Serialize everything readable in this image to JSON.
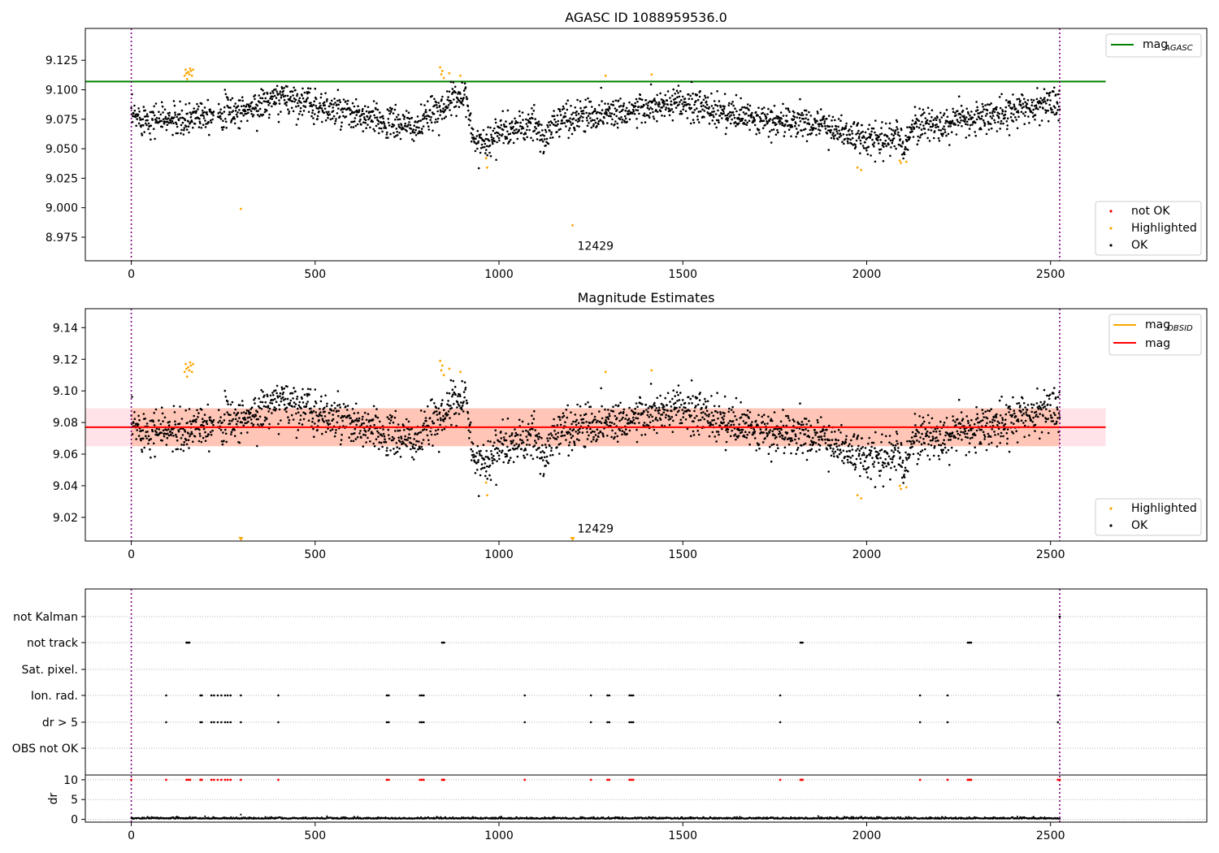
{
  "chart_data": [
    {
      "type": "scatter",
      "title": "AGASC ID 1088959536.0",
      "xlabel": "",
      "ylabel": "",
      "xlim": [
        -125,
        2925
      ],
      "ylim": [
        8.955,
        9.152
      ],
      "xticks": [
        0,
        500,
        1000,
        1500,
        2000,
        2500
      ],
      "yticks": [
        8.975,
        9.0,
        9.025,
        9.05,
        9.075,
        9.1,
        9.125
      ],
      "xtick_labels": [
        "0",
        "500",
        "1000",
        "1500",
        "2000",
        "2500"
      ],
      "ytick_labels": [
        "8.975",
        "9.000",
        "9.025",
        "9.050",
        "9.075",
        "9.100",
        "9.125"
      ],
      "vlines": [
        0,
        2525
      ],
      "hline": {
        "name": "mag_AGASC",
        "y": 9.107,
        "x_range": [
          -125,
          2650
        ],
        "color": "#008000"
      },
      "annotation": {
        "text": "12429",
        "x": 1200,
        "y": 8.963
      },
      "legends": [
        {
          "position": "top-right",
          "entries": [
            {
              "label": "mag",
              "subscript": "AGASC",
              "kind": "line",
              "color": "#008000"
            }
          ]
        },
        {
          "position": "bottom-right",
          "entries": [
            {
              "label": "not OK",
              "kind": "dot",
              "color": "#ff0000"
            },
            {
              "label": "Highlighted",
              "kind": "dot",
              "color": "#ffa500"
            },
            {
              "label": "OK",
              "kind": "dot",
              "color": "#000000"
            }
          ]
        }
      ],
      "series": [
        {
          "name": "OK",
          "color": "#000000",
          "generator": "mag-trend",
          "trend": [
            [
              0,
              9.077
            ],
            [
              130,
              9.074
            ],
            [
              140,
              9.07
            ],
            [
              175,
              9.08
            ],
            [
              300,
              9.082
            ],
            [
              420,
              9.094
            ],
            [
              520,
              9.085
            ],
            [
              600,
              9.078
            ],
            [
              700,
              9.072
            ],
            [
              780,
              9.068
            ],
            [
              830,
              9.083
            ],
            [
              880,
              9.092
            ],
            [
              910,
              9.099
            ],
            [
              925,
              9.06
            ],
            [
              960,
              9.055
            ],
            [
              1000,
              9.064
            ],
            [
              1100,
              9.07
            ],
            [
              1125,
              9.055
            ],
            [
              1150,
              9.074
            ],
            [
              1250,
              9.079
            ],
            [
              1400,
              9.084
            ],
            [
              1500,
              9.088
            ],
            [
              1600,
              9.082
            ],
            [
              1700,
              9.074
            ],
            [
              1850,
              9.072
            ],
            [
              1900,
              9.068
            ],
            [
              2000,
              9.057
            ],
            [
              2080,
              9.061
            ],
            [
              2100,
              9.052
            ],
            [
              2130,
              9.072
            ],
            [
              2200,
              9.07
            ],
            [
              2300,
              9.076
            ],
            [
              2400,
              9.082
            ],
            [
              2525,
              9.09
            ]
          ],
          "noise": 0.008,
          "n": 2400
        },
        {
          "name": "Highlighted",
          "color": "#ffa500",
          "points": [
            [
              145,
              9.112
            ],
            [
              148,
              9.117
            ],
            [
              150,
              9.114
            ],
            [
              152,
              9.109
            ],
            [
              155,
              9.115
            ],
            [
              158,
              9.113
            ],
            [
              160,
              9.118
            ],
            [
              162,
              9.116
            ],
            [
              165,
              9.112
            ],
            [
              168,
              9.117
            ],
            [
              298,
              8.999
            ],
            [
              840,
              9.119
            ],
            [
              843,
              9.113
            ],
            [
              846,
              9.116
            ],
            [
              850,
              9.11
            ],
            [
              865,
              9.114
            ],
            [
              895,
              9.112
            ],
            [
              965,
              9.042
            ],
            [
              968,
              9.034
            ],
            [
              1200,
              8.985
            ],
            [
              1290,
              9.112
            ],
            [
              1415,
              9.113
            ],
            [
              1975,
              9.034
            ],
            [
              1985,
              9.032
            ],
            [
              2090,
              9.04
            ],
            [
              2093,
              9.038
            ],
            [
              2108,
              9.039
            ]
          ]
        }
      ]
    },
    {
      "type": "scatter",
      "title": "Magnitude Estimates",
      "xlabel": "",
      "ylabel": "",
      "xlim": [
        -125,
        2925
      ],
      "ylim": [
        9.005,
        9.152
      ],
      "xticks": [
        0,
        500,
        1000,
        1500,
        2000,
        2500
      ],
      "yticks": [
        9.02,
        9.04,
        9.06,
        9.08,
        9.1,
        9.12,
        9.14
      ],
      "xtick_labels": [
        "0",
        "500",
        "1000",
        "1500",
        "2000",
        "2500"
      ],
      "ytick_labels": [
        "9.02",
        "9.04",
        "9.06",
        "9.08",
        "9.10",
        "9.12",
        "9.14"
      ],
      "vlines": [
        0,
        2525
      ],
      "mag_line": {
        "name": "mag",
        "y": 9.077,
        "x_range": [
          -125,
          2650
        ],
        "color": "#ff0000"
      },
      "band": {
        "y_low": 9.065,
        "y_high": 9.089,
        "outer_x_range": [
          -125,
          2650
        ],
        "inner_x_range": [
          0,
          2525
        ],
        "outer_color": "#ffc0cb",
        "inner_color": "#ffa07a"
      },
      "annotation": {
        "text": "12429",
        "x": 1200,
        "y": 9.0094
      },
      "legends": [
        {
          "position": "top-right",
          "entries": [
            {
              "label": "mag",
              "subscript": "OBSID",
              "kind": "line",
              "color": "#ffa500"
            },
            {
              "label": "mag",
              "kind": "line",
              "color": "#ff0000"
            }
          ]
        },
        {
          "position": "bottom-right",
          "entries": [
            {
              "label": "Highlighted",
              "kind": "dot",
              "color": "#ffa500"
            },
            {
              "label": "OK",
              "kind": "dot",
              "color": "#000000"
            }
          ]
        }
      ],
      "offscale_markers": [
        {
          "x": 298,
          "y": 9.006
        },
        {
          "x": 1200,
          "y": 9.006
        }
      ]
    },
    {
      "type": "scatter",
      "title": "",
      "xlim": [
        -125,
        2925
      ],
      "xticks": [
        0,
        500,
        1000,
        1500,
        2000,
        2500
      ],
      "xtick_labels": [
        "0",
        "500",
        "1000",
        "1500",
        "2000",
        "2500"
      ],
      "vlines": [
        0,
        2525
      ],
      "flag_rows": [
        "not Kalman",
        "not track",
        "Sat. pixel.",
        "Ion. rad.",
        "dr > 5",
        "OBS not OK"
      ],
      "flag_points": {
        "not Kalman": [
          2525
        ],
        "not track": [
          150,
          152,
          155,
          158,
          845,
          848,
          851,
          1820,
          1823,
          1826,
          2275,
          2278,
          2281,
          2284
        ],
        "Sat. pixel.": [],
        "Ion. rad.": [
          95,
          188,
          192,
          218,
          225,
          235,
          245,
          255,
          262,
          270,
          298,
          400,
          695,
          700,
          785,
          790,
          795,
          1070,
          1250,
          1295,
          1300,
          1355,
          1360,
          1365,
          1765,
          2145,
          2220,
          2520
        ],
        "dr > 5": [
          95,
          188,
          192,
          218,
          225,
          235,
          245,
          255,
          262,
          270,
          298,
          400,
          695,
          700,
          785,
          790,
          795,
          1070,
          1250,
          1295,
          1300,
          1355,
          1360,
          1365,
          1765,
          2145,
          2220,
          2520
        ],
        "OBS not OK": []
      },
      "dr": {
        "ylabel": "dr",
        "ylim": [
          -0.5,
          11
        ],
        "yticks": [
          0,
          5,
          10
        ],
        "ytick_labels": [
          "0",
          "5",
          "10"
        ],
        "baseline_noise": 0.6,
        "high_points_color": "#ff0000",
        "high_points_value": 10,
        "high_points_x": [
          0,
          95,
          150,
          155,
          160,
          188,
          192,
          218,
          225,
          235,
          245,
          255,
          262,
          270,
          298,
          400,
          695,
          700,
          785,
          790,
          795,
          845,
          848,
          851,
          1070,
          1250,
          1295,
          1300,
          1355,
          1360,
          1365,
          1765,
          1820,
          1823,
          1826,
          2145,
          2220,
          2275,
          2278,
          2281,
          2284,
          2520,
          2525
        ]
      }
    }
  ]
}
